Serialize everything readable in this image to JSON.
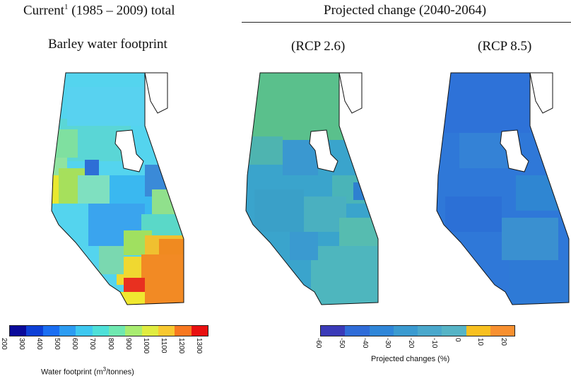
{
  "headers": {
    "current_label_pre": "Current",
    "current_sup": "1",
    "current_label_post": " (1985 – 2009) total",
    "barley_title": "Barley water footprint",
    "projected_title": "Projected change (2040-2064)",
    "rcp26": "(RCP 2.6)",
    "rcp85": "(RCP 8.5)"
  },
  "colorbar_left": {
    "title_pre": "Water footprint (m",
    "title_sup": "3",
    "title_post": "/tonnes)",
    "ticks": [
      "200",
      "300",
      "400",
      "500",
      "600",
      "700",
      "800",
      "900",
      "1000",
      "1100",
      "1200",
      "1300"
    ],
    "colors": [
      "#0a0a9a",
      "#0d3fd6",
      "#1a6ef2",
      "#2c9cf2",
      "#3ec8f0",
      "#4ee0d8",
      "#6fe8b0",
      "#a8ec70",
      "#e0ec40",
      "#f8c830",
      "#f87820",
      "#e81010"
    ]
  },
  "colorbar_right": {
    "title": "Projected changes (%)",
    "ticks": [
      "-60",
      "-50",
      "-40",
      "-30",
      "-20",
      "-10",
      "0",
      "10",
      "20"
    ],
    "colors": [
      "#3a3ab8",
      "#2f6cd8",
      "#2f86d8",
      "#3a9ad0",
      "#4aa8cc",
      "#56b4c6",
      "#f8c020",
      "#f89030"
    ]
  }
}
